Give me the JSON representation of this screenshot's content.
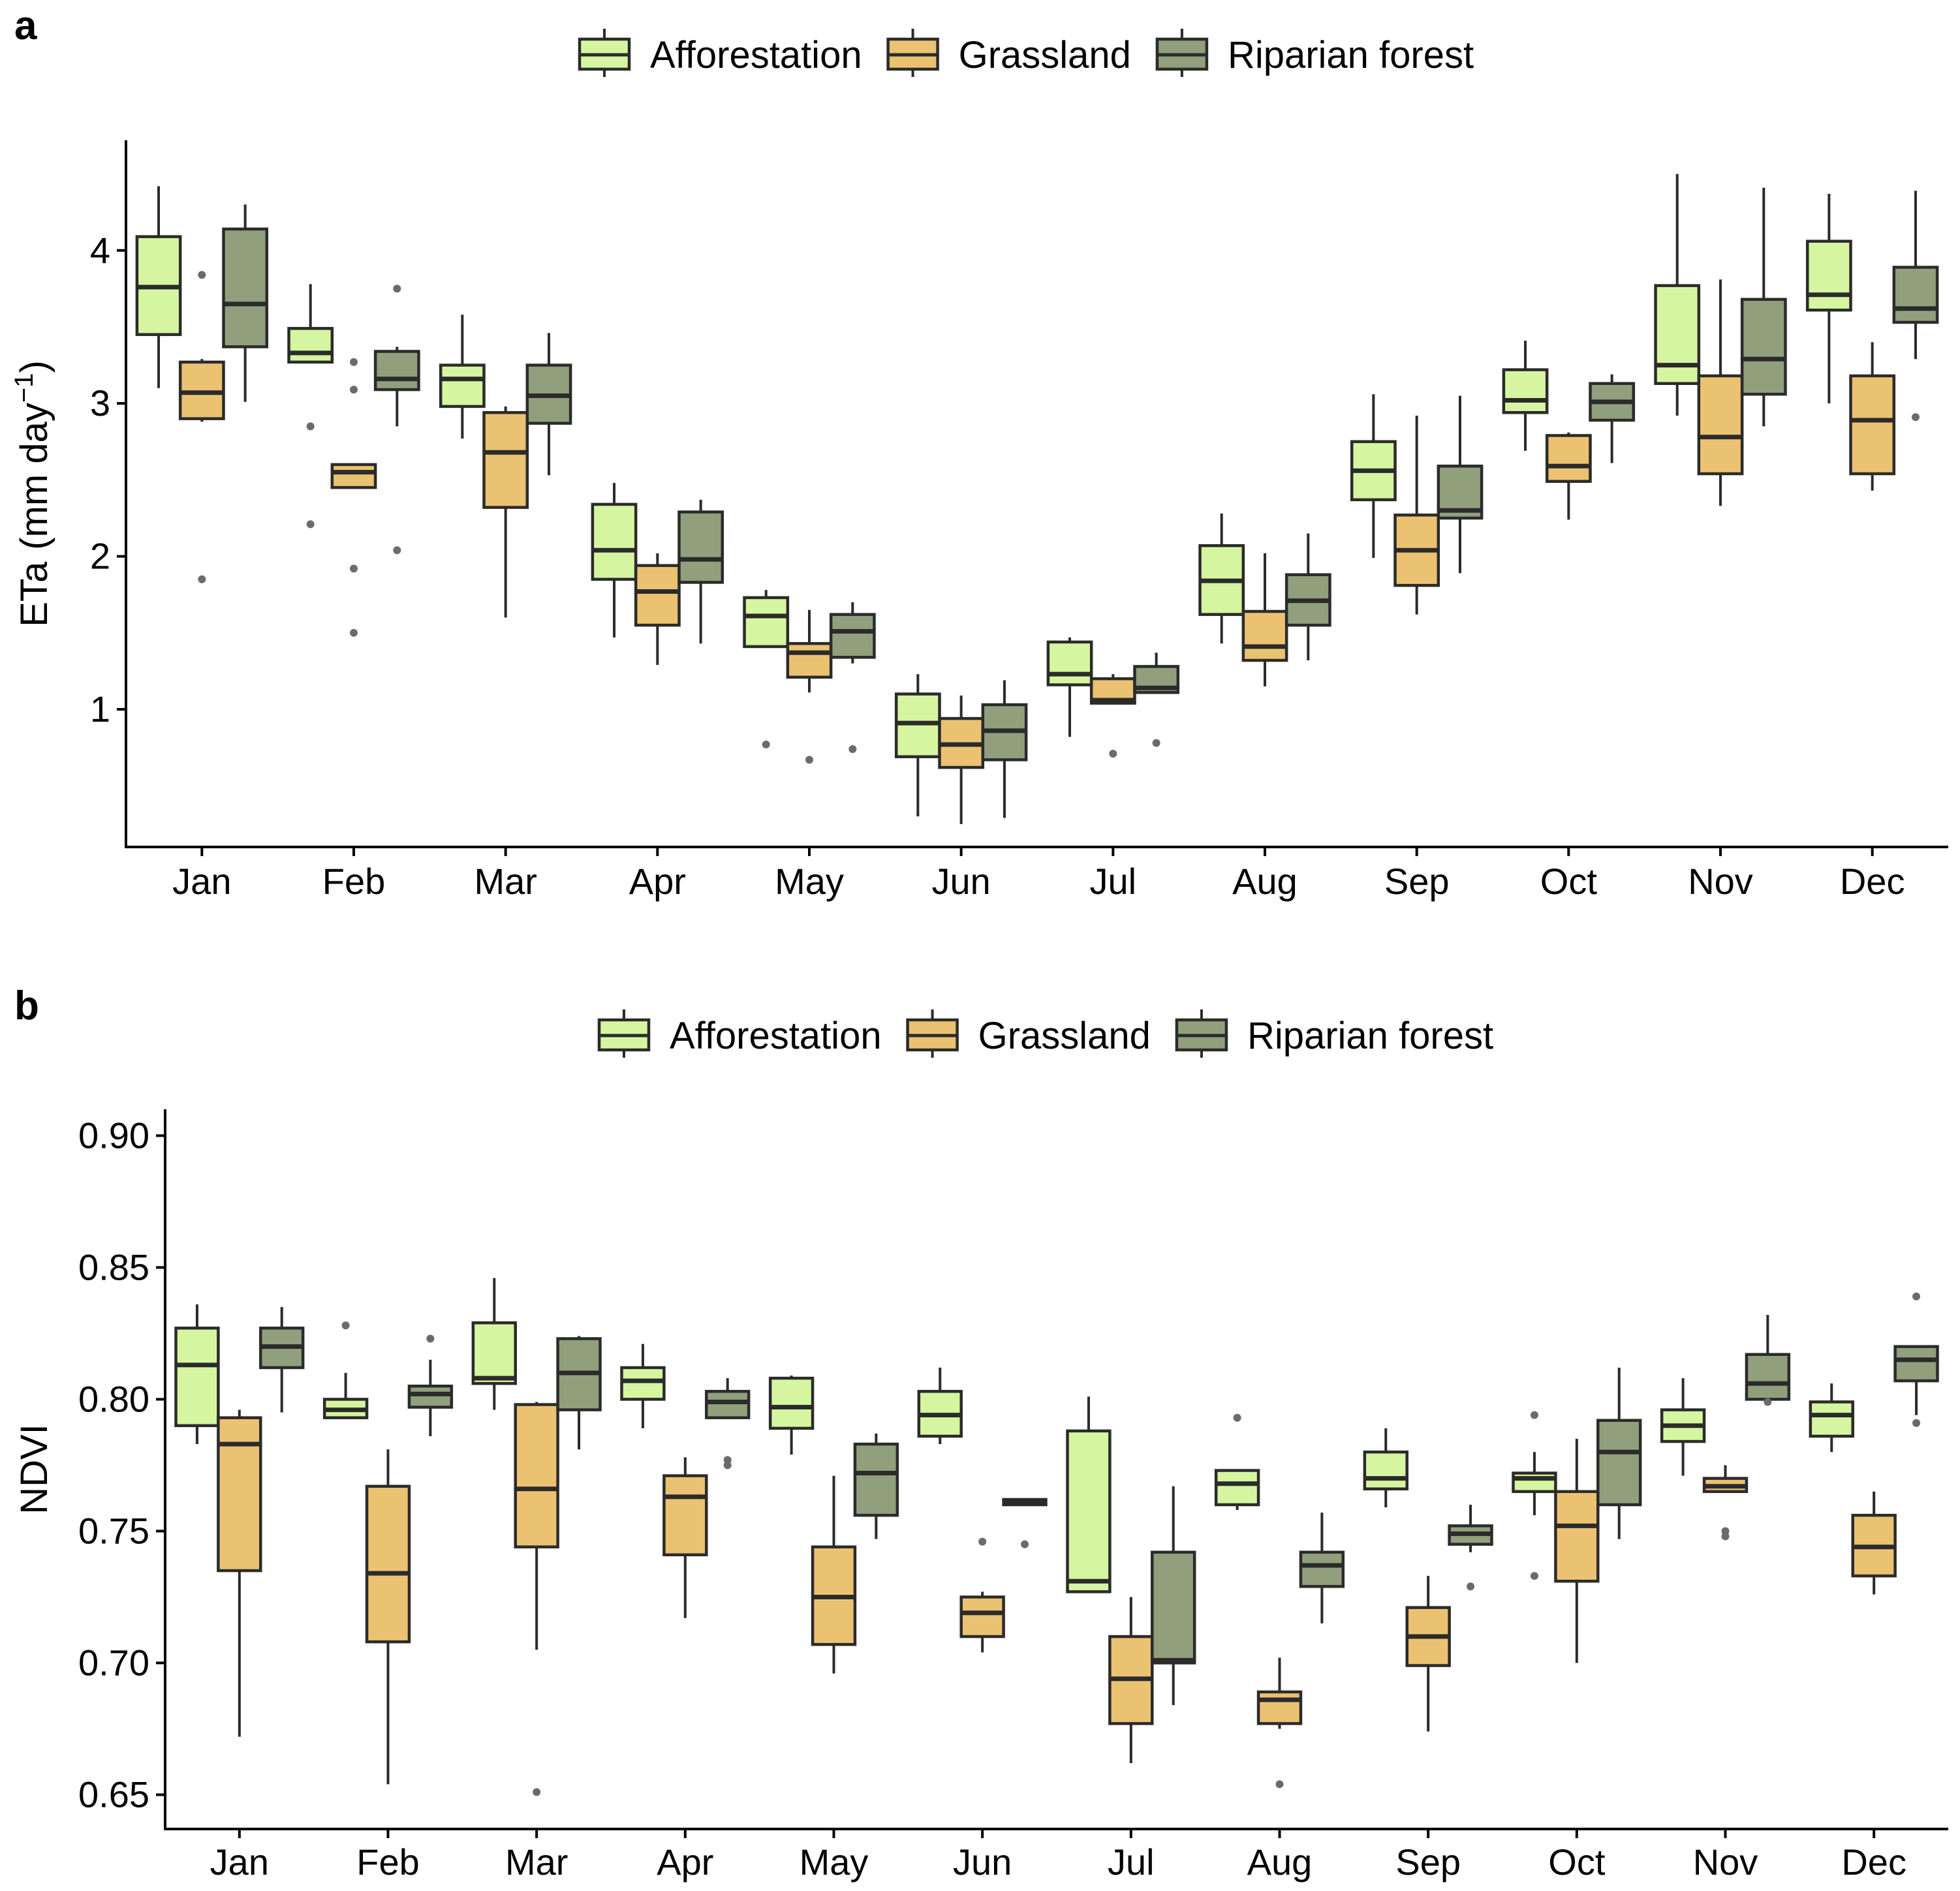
{
  "colors": {
    "Afforestation": "#d6f5a0",
    "Grassland": "#ebc271",
    "Riparian forest": "#919f7c",
    "outline": "#2b2b2b",
    "outlier": "#6b6b6b"
  },
  "chart_data": [
    {
      "type": "box",
      "panel": "a",
      "title": "",
      "legend": [
        "Afforestation",
        "Grassland",
        "Riparian forest"
      ],
      "legend_position": "top",
      "xlabel": "",
      "ylabel": "ETa",
      "ylabel_units": "(mm day",
      "ylabel_sup": "−1",
      "ylabel_close": ")",
      "categories": [
        "Jan",
        "Feb",
        "Mar",
        "Apr",
        "May",
        "Jun",
        "Jul",
        "Aug",
        "Sep",
        "Oct",
        "Nov",
        "Dec"
      ],
      "yticks": [
        1,
        2,
        3,
        4
      ],
      "ylim": [
        0.1,
        4.72
      ],
      "series": [
        {
          "name": "Afforestation",
          "boxes": [
            {
              "min": 3.1,
              "q1": 3.45,
              "median": 3.76,
              "q3": 4.09,
              "max": 4.42,
              "outliers": []
            },
            {
              "min": 3.27,
              "q1": 3.27,
              "median": 3.33,
              "q3": 3.49,
              "max": 3.78,
              "outliers": [
                2.85,
                2.21
              ]
            },
            {
              "min": 2.77,
              "q1": 2.98,
              "median": 3.16,
              "q3": 3.25,
              "max": 3.58,
              "outliers": []
            },
            {
              "min": 1.47,
              "q1": 1.85,
              "median": 2.04,
              "q3": 2.34,
              "max": 2.48,
              "outliers": []
            },
            {
              "min": 1.41,
              "q1": 1.41,
              "median": 1.61,
              "q3": 1.73,
              "max": 1.78,
              "outliers": [
                0.77
              ]
            },
            {
              "min": 0.3,
              "q1": 0.69,
              "median": 0.91,
              "q3": 1.1,
              "max": 1.23,
              "outliers": []
            },
            {
              "min": 0.82,
              "q1": 1.16,
              "median": 1.23,
              "q3": 1.44,
              "max": 1.47,
              "outliers": []
            },
            {
              "min": 1.43,
              "q1": 1.62,
              "median": 1.84,
              "q3": 2.07,
              "max": 2.28,
              "outliers": []
            },
            {
              "min": 1.99,
              "q1": 2.37,
              "median": 2.56,
              "q3": 2.75,
              "max": 3.06,
              "outliers": []
            },
            {
              "min": 2.69,
              "q1": 2.94,
              "median": 3.02,
              "q3": 3.22,
              "max": 3.41,
              "outliers": []
            },
            {
              "min": 2.92,
              "q1": 3.13,
              "median": 3.25,
              "q3": 3.77,
              "max": 4.5,
              "outliers": []
            },
            {
              "min": 3.0,
              "q1": 3.61,
              "median": 3.71,
              "q3": 4.06,
              "max": 4.37,
              "outliers": []
            }
          ]
        },
        {
          "name": "Grassland",
          "boxes": [
            {
              "min": 2.88,
              "q1": 2.9,
              "median": 3.07,
              "q3": 3.27,
              "max": 3.29,
              "outliers": [
                3.84,
                1.85
              ]
            },
            {
              "min": 2.45,
              "q1": 2.45,
              "median": 2.55,
              "q3": 2.6,
              "max": 2.6,
              "outliers": [
                3.27,
                3.09,
                1.92,
                1.5
              ]
            },
            {
              "min": 1.6,
              "q1": 2.32,
              "median": 2.68,
              "q3": 2.94,
              "max": 2.98,
              "outliers": []
            },
            {
              "min": 1.29,
              "q1": 1.55,
              "median": 1.77,
              "q3": 1.94,
              "max": 2.02,
              "outliers": []
            },
            {
              "min": 1.11,
              "q1": 1.21,
              "median": 1.37,
              "q3": 1.43,
              "max": 1.65,
              "outliers": [
                0.67
              ]
            },
            {
              "min": 0.25,
              "q1": 0.62,
              "median": 0.77,
              "q3": 0.94,
              "max": 1.09,
              "outliers": []
            },
            {
              "min": 1.04,
              "q1": 1.04,
              "median": 1.06,
              "q3": 1.2,
              "max": 1.23,
              "outliers": [
                0.71
              ]
            },
            {
              "min": 1.15,
              "q1": 1.32,
              "median": 1.41,
              "q3": 1.64,
              "max": 2.02,
              "outliers": []
            },
            {
              "min": 1.62,
              "q1": 1.81,
              "median": 2.04,
              "q3": 2.27,
              "max": 2.92,
              "outliers": []
            },
            {
              "min": 2.24,
              "q1": 2.49,
              "median": 2.59,
              "q3": 2.79,
              "max": 2.81,
              "outliers": []
            },
            {
              "min": 2.33,
              "q1": 2.54,
              "median": 2.78,
              "q3": 3.18,
              "max": 3.81,
              "outliers": []
            },
            {
              "min": 2.43,
              "q1": 2.54,
              "median": 2.89,
              "q3": 3.18,
              "max": 3.4,
              "outliers": []
            }
          ]
        },
        {
          "name": "Riparian forest",
          "boxes": [
            {
              "min": 3.01,
              "q1": 3.37,
              "median": 3.65,
              "q3": 4.14,
              "max": 4.3,
              "outliers": []
            },
            {
              "min": 2.85,
              "q1": 3.09,
              "median": 3.16,
              "q3": 3.34,
              "max": 3.37,
              "outliers": [
                3.75,
                2.04
              ]
            },
            {
              "min": 2.53,
              "q1": 2.87,
              "median": 3.05,
              "q3": 3.25,
              "max": 3.46,
              "outliers": []
            },
            {
              "min": 1.43,
              "q1": 1.83,
              "median": 1.98,
              "q3": 2.29,
              "max": 2.37,
              "outliers": []
            },
            {
              "min": 1.3,
              "q1": 1.34,
              "median": 1.51,
              "q3": 1.62,
              "max": 1.7,
              "outliers": [
                0.74
              ]
            },
            {
              "min": 0.29,
              "q1": 0.67,
              "median": 0.86,
              "q3": 1.03,
              "max": 1.19,
              "outliers": []
            },
            {
              "min": 1.11,
              "q1": 1.11,
              "median": 1.14,
              "q3": 1.28,
              "max": 1.37,
              "outliers": [
                0.78
              ]
            },
            {
              "min": 1.32,
              "q1": 1.55,
              "median": 1.71,
              "q3": 1.88,
              "max": 2.15,
              "outliers": []
            },
            {
              "min": 1.89,
              "q1": 2.25,
              "median": 2.3,
              "q3": 2.59,
              "max": 3.05,
              "outliers": []
            },
            {
              "min": 2.61,
              "q1": 2.89,
              "median": 3.01,
              "q3": 3.13,
              "max": 3.19,
              "outliers": []
            },
            {
              "min": 2.85,
              "q1": 3.06,
              "median": 3.29,
              "q3": 3.68,
              "max": 4.41,
              "outliers": []
            },
            {
              "min": 3.29,
              "q1": 3.53,
              "median": 3.62,
              "q3": 3.89,
              "max": 4.39,
              "outliers": [
                2.91
              ]
            }
          ]
        }
      ]
    },
    {
      "type": "box",
      "panel": "b",
      "title": "",
      "legend": [
        "Afforestation",
        "Grassland",
        "Riparian forest"
      ],
      "legend_position": "top",
      "xlabel": "",
      "ylabel": "NDVI",
      "categories": [
        "Jan",
        "Feb",
        "Mar",
        "Apr",
        "May",
        "Jun",
        "Jul",
        "Aug",
        "Sep",
        "Oct",
        "Nov",
        "Dec"
      ],
      "yticks": [
        0.65,
        0.7,
        0.75,
        0.8,
        0.85,
        0.9
      ],
      "ytick_labels": [
        "0.65",
        "0.70",
        "0.75",
        "0.80",
        "0.85",
        "0.90"
      ],
      "ylim": [
        0.637,
        0.91
      ],
      "series": [
        {
          "name": "Afforestation",
          "boxes": [
            {
              "min": 0.783,
              "q1": 0.79,
              "median": 0.813,
              "q3": 0.827,
              "max": 0.836,
              "outliers": []
            },
            {
              "min": 0.793,
              "q1": 0.793,
              "median": 0.796,
              "q3": 0.8,
              "max": 0.81,
              "outliers": [
                0.828
              ]
            },
            {
              "min": 0.796,
              "q1": 0.806,
              "median": 0.808,
              "q3": 0.829,
              "max": 0.846,
              "outliers": []
            },
            {
              "min": 0.789,
              "q1": 0.8,
              "median": 0.807,
              "q3": 0.812,
              "max": 0.821,
              "outliers": []
            },
            {
              "min": 0.779,
              "q1": 0.789,
              "median": 0.797,
              "q3": 0.808,
              "max": 0.809,
              "outliers": []
            },
            {
              "min": 0.783,
              "q1": 0.786,
              "median": 0.794,
              "q3": 0.803,
              "max": 0.812,
              "outliers": []
            },
            {
              "min": 0.727,
              "q1": 0.727,
              "median": 0.731,
              "q3": 0.788,
              "max": 0.801,
              "outliers": []
            },
            {
              "min": 0.758,
              "q1": 0.76,
              "median": 0.768,
              "q3": 0.773,
              "max": 0.773,
              "outliers": [
                0.793
              ]
            },
            {
              "min": 0.759,
              "q1": 0.766,
              "median": 0.77,
              "q3": 0.78,
              "max": 0.789,
              "outliers": []
            },
            {
              "min": 0.756,
              "q1": 0.765,
              "median": 0.77,
              "q3": 0.772,
              "max": 0.78,
              "outliers": [
                0.733,
                0.794
              ]
            },
            {
              "min": 0.771,
              "q1": 0.784,
              "median": 0.79,
              "q3": 0.796,
              "max": 0.808,
              "outliers": []
            },
            {
              "min": 0.78,
              "q1": 0.786,
              "median": 0.794,
              "q3": 0.799,
              "max": 0.806,
              "outliers": []
            }
          ]
        },
        {
          "name": "Grassland",
          "boxes": [
            {
              "min": 0.672,
              "q1": 0.735,
              "median": 0.783,
              "q3": 0.793,
              "max": 0.796,
              "outliers": []
            },
            {
              "min": 0.654,
              "q1": 0.708,
              "median": 0.734,
              "q3": 0.767,
              "max": 0.781,
              "outliers": []
            },
            {
              "min": 0.705,
              "q1": 0.744,
              "median": 0.766,
              "q3": 0.798,
              "max": 0.799,
              "outliers": [
                0.651
              ]
            },
            {
              "min": 0.717,
              "q1": 0.741,
              "median": 0.763,
              "q3": 0.771,
              "max": 0.778,
              "outliers": []
            },
            {
              "min": 0.696,
              "q1": 0.707,
              "median": 0.725,
              "q3": 0.744,
              "max": 0.771,
              "outliers": []
            },
            {
              "min": 0.704,
              "q1": 0.71,
              "median": 0.719,
              "q3": 0.725,
              "max": 0.727,
              "outliers": [
                0.746
              ]
            },
            {
              "min": 0.662,
              "q1": 0.677,
              "median": 0.694,
              "q3": 0.71,
              "max": 0.725,
              "outliers": []
            },
            {
              "min": 0.675,
              "q1": 0.677,
              "median": 0.686,
              "q3": 0.689,
              "max": 0.702,
              "outliers": [
                0.654
              ]
            },
            {
              "min": 0.674,
              "q1": 0.699,
              "median": 0.71,
              "q3": 0.721,
              "max": 0.733,
              "outliers": []
            },
            {
              "min": 0.7,
              "q1": 0.731,
              "median": 0.752,
              "q3": 0.765,
              "max": 0.785,
              "outliers": []
            },
            {
              "min": 0.765,
              "q1": 0.765,
              "median": 0.767,
              "q3": 0.77,
              "max": 0.775,
              "outliers": [
                0.75,
                0.748
              ]
            },
            {
              "min": 0.726,
              "q1": 0.733,
              "median": 0.744,
              "q3": 0.756,
              "max": 0.765,
              "outliers": []
            }
          ]
        },
        {
          "name": "Riparian forest",
          "boxes": [
            {
              "min": 0.795,
              "q1": 0.812,
              "median": 0.82,
              "q3": 0.827,
              "max": 0.835,
              "outliers": []
            },
            {
              "min": 0.786,
              "q1": 0.797,
              "median": 0.802,
              "q3": 0.805,
              "max": 0.815,
              "outliers": [
                0.823
              ]
            },
            {
              "min": 0.781,
              "q1": 0.796,
              "median": 0.81,
              "q3": 0.823,
              "max": 0.824,
              "outliers": []
            },
            {
              "min": 0.793,
              "q1": 0.793,
              "median": 0.799,
              "q3": 0.803,
              "max": 0.808,
              "outliers": [
                0.777,
                0.775
              ]
            },
            {
              "min": 0.747,
              "q1": 0.756,
              "median": 0.772,
              "q3": 0.783,
              "max": 0.787,
              "outliers": []
            },
            {
              "min": 0.76,
              "q1": 0.76,
              "median": 0.761,
              "q3": 0.762,
              "max": 0.762,
              "outliers": [
                0.745
              ]
            },
            {
              "min": 0.684,
              "q1": 0.7,
              "median": 0.701,
              "q3": 0.742,
              "max": 0.767,
              "outliers": []
            },
            {
              "min": 0.715,
              "q1": 0.729,
              "median": 0.737,
              "q3": 0.742,
              "max": 0.757,
              "outliers": []
            },
            {
              "min": 0.742,
              "q1": 0.745,
              "median": 0.749,
              "q3": 0.752,
              "max": 0.76,
              "outliers": [
                0.729
              ]
            },
            {
              "min": 0.747,
              "q1": 0.76,
              "median": 0.78,
              "q3": 0.792,
              "max": 0.812,
              "outliers": []
            },
            {
              "min": 0.8,
              "q1": 0.8,
              "median": 0.806,
              "q3": 0.817,
              "max": 0.832,
              "outliers": [
                0.799
              ]
            },
            {
              "min": 0.794,
              "q1": 0.807,
              "median": 0.815,
              "q3": 0.82,
              "max": 0.82,
              "outliers": [
                0.839,
                0.791
              ]
            }
          ]
        }
      ]
    }
  ]
}
